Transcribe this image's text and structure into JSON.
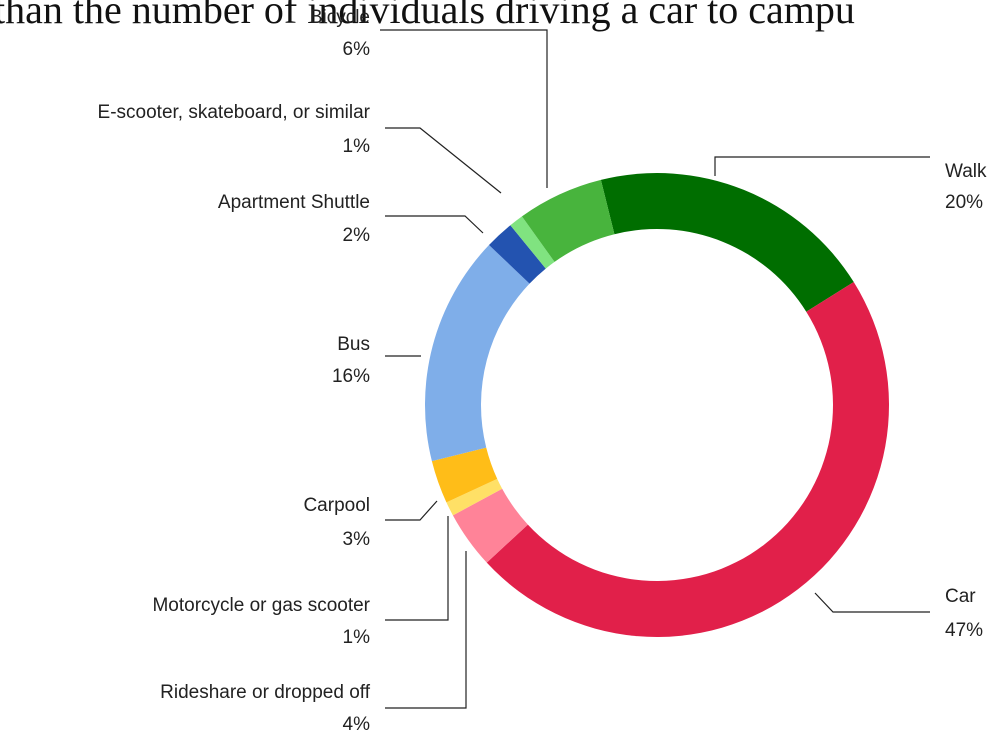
{
  "chart_data": {
    "type": "donut",
    "title": "than the number of individuals driving a car to campu",
    "categories": [
      "Walk",
      "Car",
      "Rideshare or dropped off",
      "Motorcycle or gas scooter",
      "Carpool",
      "Bus",
      "Apartment Shuttle",
      "E-scooter, skateboard, or similar",
      "Bicycle"
    ],
    "values": [
      20,
      47,
      4,
      1,
      3,
      16,
      2,
      1,
      6
    ],
    "value_labels": [
      "20%",
      "47%",
      "4%",
      "1%",
      "3%",
      "16%",
      "2%",
      "1%",
      "6%"
    ],
    "colors": [
      "#006e00",
      "#e1204a",
      "#ff8398",
      "#ffe066",
      "#ffbd18",
      "#7faee9",
      "#2353b0",
      "#80e380",
      "#48b43d"
    ]
  }
}
